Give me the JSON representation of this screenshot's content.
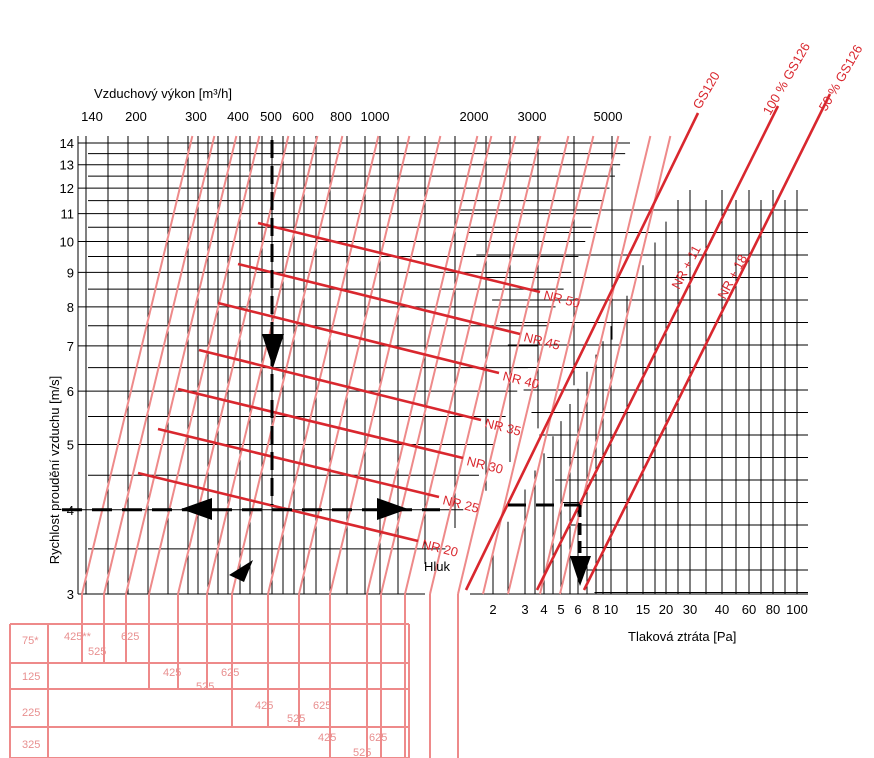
{
  "chart_data": {
    "type": "line",
    "title": "",
    "xlabel_top": "Vzduchový výkon [m³/h]",
    "ylabel": "Rychlost proudění vzduchu [m/s]",
    "xlabel_right": "Tlaková ztráta  [Pa]",
    "noise_label": "Hluk",
    "top_ticks": [
      "140",
      "200",
      "300",
      "400",
      "500",
      "600",
      "800",
      "1000",
      "2000",
      "3000",
      "5000"
    ],
    "y_ticks": [
      "3",
      "4",
      "5",
      "6",
      "7",
      "8",
      "9",
      "10",
      "11",
      "12",
      "13",
      "14"
    ],
    "pressure_ticks": [
      "2",
      "3",
      "4",
      "5",
      "6",
      "8",
      "10",
      "15",
      "20",
      "30",
      "40",
      "60",
      "80",
      "100"
    ],
    "ylim": [
      3,
      14
    ],
    "noise_series": [
      {
        "name": "NR 20"
      },
      {
        "name": "NR 25"
      },
      {
        "name": "NR 30"
      },
      {
        "name": "NR 35"
      },
      {
        "name": "NR 40"
      },
      {
        "name": "NR 45"
      },
      {
        "name": "NR 50"
      }
    ],
    "pressure_series": [
      {
        "name": "GS120"
      },
      {
        "name": "100 % GS126",
        "correction": "NR + 11"
      },
      {
        "name": "50 % GS126",
        "correction": "NR + 18"
      }
    ],
    "example": {
      "airflow": 500,
      "velocity": 4,
      "pressure_drop": 6.5
    },
    "width_table": {
      "rows": [
        {
          "height": "75*",
          "labels": [
            "425**",
            "525",
            "625"
          ]
        },
        {
          "height": "125",
          "labels": [
            "425",
            "525",
            "625"
          ]
        },
        {
          "height": "225",
          "labels": [
            "425",
            "525",
            "625"
          ]
        },
        {
          "height": "325",
          "labels": [
            "425",
            "525",
            "625"
          ]
        }
      ]
    }
  },
  "colors": {
    "noise_lines": "#d9272e",
    "duct_lines": "#ee8a8a",
    "grid": "#000000"
  }
}
